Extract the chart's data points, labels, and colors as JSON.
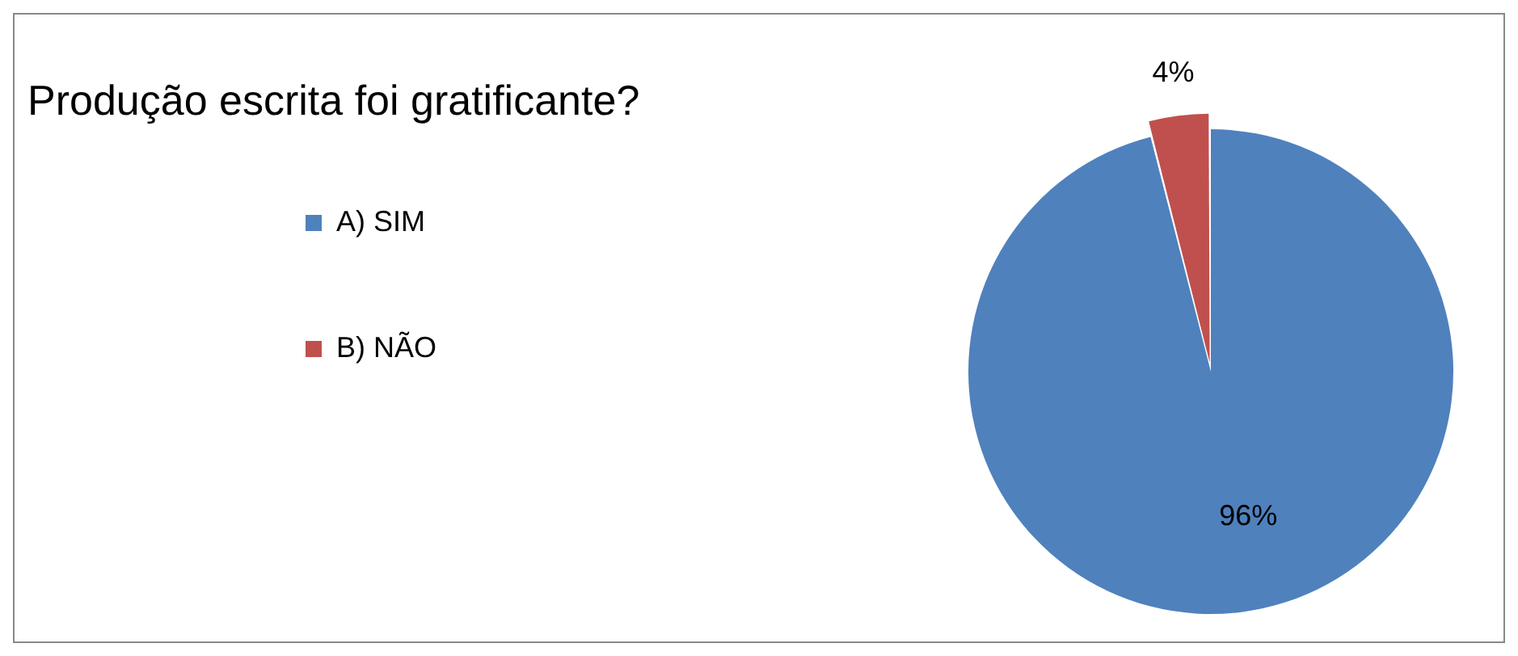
{
  "chart_data": {
    "type": "pie",
    "title": "Produção escrita foi gratificante?",
    "categories": [
      "A) SIM",
      "B) NÃO"
    ],
    "values": [
      96,
      4
    ],
    "colors": [
      "#4f81bd",
      "#c0504d"
    ],
    "value_labels": [
      "96%",
      "4%"
    ],
    "legend": "left"
  }
}
